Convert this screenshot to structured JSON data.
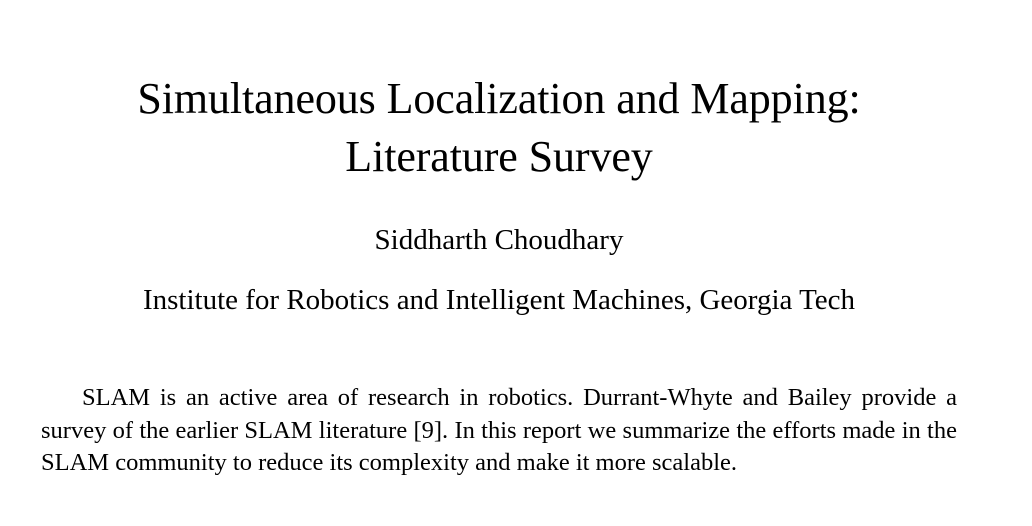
{
  "paper": {
    "title_line1": "Simultaneous Localization and Mapping:",
    "title_line2": "Literature Survey",
    "author": "Siddharth Choudhary",
    "affiliation": "Institute for Robotics and Intelligent Machines, Georgia Tech",
    "abstract": "SLAM is an active area of research in robotics. Durrant-Whyte and Bailey provide a survey of the earlier SLAM literature [9].  In this report we summarize the efforts made in the SLAM community to reduce its complexity and make it more scalable."
  }
}
